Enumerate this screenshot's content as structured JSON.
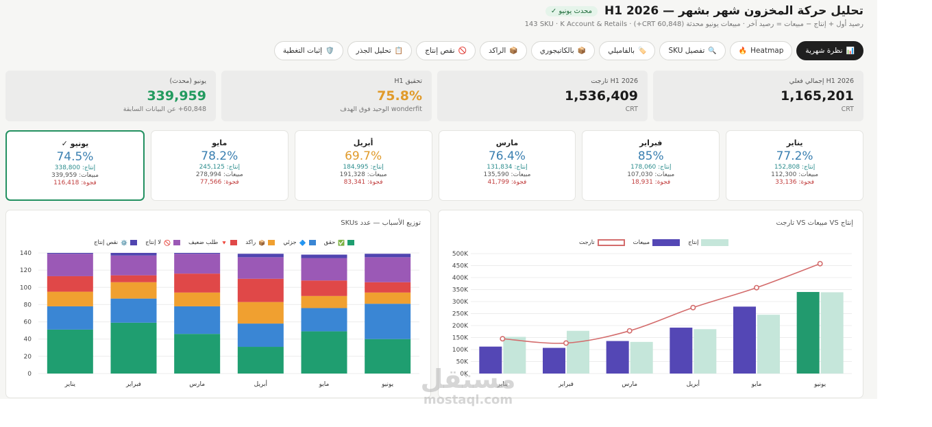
{
  "header": {
    "title": "تحليل حركة المخزون شهر بشهر — H1 2026",
    "updated_badge": "محدث يونيو ✓",
    "subtitle": "رصيد أول + إنتاج − مبيعات = رصيد آخر · مبيعات يونيو محدثة (CRT 60,848+) · 143 SKU · K Account & Retails"
  },
  "tabs": [
    {
      "label": "نظرة شهرية",
      "icon": "📊",
      "active": true
    },
    {
      "label": "Heatmap",
      "icon": "🔥",
      "active": false
    },
    {
      "label": "تفصيل SKU",
      "icon": "🔍",
      "active": false
    },
    {
      "label": "بالفاميلي",
      "icon": "🏷️",
      "active": false
    },
    {
      "label": "بالكاتيجوري",
      "icon": "📦",
      "active": false
    },
    {
      "label": "الراكد",
      "icon": "📦",
      "active": false
    },
    {
      "label": "نقص إنتاج",
      "icon": "🚫",
      "active": false
    },
    {
      "label": "تحليل الجذر",
      "icon": "📋",
      "active": false
    },
    {
      "label": "إثبات التغطية",
      "icon": "🛡️",
      "active": false
    }
  ],
  "kpis": [
    {
      "label": "H1 2026 إجمالي فعلي",
      "value": "1,165,201",
      "note": "CRT",
      "color": "#1a1a1a"
    },
    {
      "label": "H1 2026 تارجت",
      "value": "1,536,409",
      "note": "CRT",
      "color": "#1a1a1a"
    },
    {
      "label": "تحقيق H1",
      "value": "75.8%",
      "note": "wonderfit الوحيد فوق الهدف",
      "color": "#e09a2a"
    },
    {
      "label": "يونيو (محدث)",
      "value": "339,959",
      "note": "60,848+ عن البيانات السابقة",
      "color": "#229a5e"
    }
  ],
  "months": [
    {
      "name": "يناير",
      "pct": "77.2%",
      "pct_color": "#3a7fb0",
      "prod": "إنتاج: 152,808",
      "sales": "مبيعات: 112,300",
      "gap": "فجوة: 33,136",
      "selected": false
    },
    {
      "name": "فبراير",
      "pct": "85%",
      "pct_color": "#3a7fb0",
      "prod": "إنتاج: 178,060",
      "sales": "مبيعات: 107,030",
      "gap": "فجوة: 18,931",
      "selected": false
    },
    {
      "name": "مارس",
      "pct": "76.4%",
      "pct_color": "#3a7fb0",
      "prod": "إنتاج: 131,834",
      "sales": "مبيعات: 135,590",
      "gap": "فجوة: 41,799",
      "selected": false
    },
    {
      "name": "أبريل",
      "pct": "69.7%",
      "pct_color": "#e09a2a",
      "prod": "إنتاج: 184,995",
      "sales": "مبيعات: 191,328",
      "gap": "فجوة: 83,341",
      "selected": false
    },
    {
      "name": "مايو",
      "pct": "78.2%",
      "pct_color": "#3a7fb0",
      "prod": "إنتاج: 245,125",
      "sales": "مبيعات: 278,994",
      "gap": "فجوة: 77,566",
      "selected": false
    },
    {
      "name": "يونيو ✓",
      "pct": "74.5%",
      "pct_color": "#3a7fb0",
      "prod": "إنتاج: 338,800",
      "sales": "مبيعات: 339,959",
      "gap": "فجوة: 116,418",
      "selected": true
    }
  ],
  "chart_data": [
    {
      "type": "bar",
      "title": "إنتاج VS مبيعات VS تارجت",
      "categories": [
        "يناير",
        "فبراير",
        "مارس",
        "أبريل",
        "مايو",
        "يونيو"
      ],
      "yticks": [
        "0K",
        "50K",
        "100K",
        "150K",
        "200K",
        "250K",
        "300K",
        "350K",
        "400K",
        "450K",
        "500K"
      ],
      "ylim": [
        0,
        500000
      ],
      "series": [
        {
          "name": "مبيعات",
          "kind": "bar",
          "color": "#5447b5",
          "values": [
            112300,
            107030,
            135590,
            191328,
            278994,
            339959
          ],
          "last_color": "#229a6e"
        },
        {
          "name": "إنتاج",
          "kind": "bar",
          "color": "#c5e6da",
          "values": [
            152808,
            178060,
            131834,
            184995,
            245125,
            338800
          ]
        },
        {
          "name": "تارجت",
          "kind": "line",
          "color": "#d36b6b",
          "values": [
            145000,
            127000,
            178000,
            275000,
            358000,
            458000
          ]
        }
      ]
    },
    {
      "type": "bar",
      "stacked": true,
      "title": "توزيع الأسباب — عدد SKUs",
      "categories": [
        "يناير",
        "فبراير",
        "مارس",
        "أبريل",
        "مايو",
        "يونيو"
      ],
      "yticks": [
        "0",
        "20",
        "40",
        "60",
        "80",
        "100",
        "120",
        "140"
      ],
      "ylim": [
        0,
        140
      ],
      "series": [
        {
          "name": "حقق",
          "icon": "✅",
          "color": "#1f9e70",
          "values": [
            51,
            59,
            46,
            31,
            49,
            40
          ]
        },
        {
          "name": "جزئي",
          "icon": "🔷",
          "color": "#3a86d4",
          "values": [
            27,
            28,
            32,
            27,
            27,
            41
          ]
        },
        {
          "name": "راكد",
          "icon": "📦",
          "color": "#f0a030",
          "values": [
            17,
            19,
            16,
            25,
            14,
            13
          ]
        },
        {
          "name": "طلب ضعيف",
          "icon": "🔻",
          "color": "#e04848",
          "values": [
            18,
            8,
            22,
            27,
            18,
            12
          ]
        },
        {
          "name": "لا إنتاج",
          "icon": "🚫",
          "color": "#9b59b6",
          "values": [
            26,
            23,
            23,
            25,
            26,
            29
          ]
        },
        {
          "name": "نقص إنتاج",
          "icon": "⚙️",
          "color": "#5045b0",
          "values": [
            1,
            3,
            1,
            4,
            4,
            4
          ]
        }
      ]
    }
  ],
  "watermark": {
    "ar": "مستقل",
    "en": "mostaql.com"
  }
}
